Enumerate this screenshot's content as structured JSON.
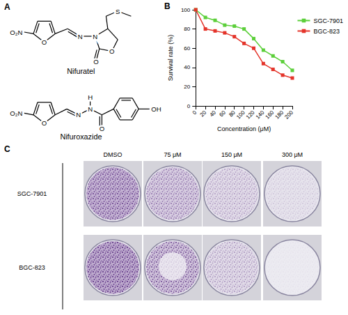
{
  "panel_labels": [
    "A",
    "B",
    "C"
  ],
  "panel_a": {
    "molecules": [
      {
        "name": "Nifuratel",
        "atoms": [
          "O₂N",
          "O",
          "N",
          "N",
          "O",
          "O",
          "S"
        ]
      },
      {
        "name": "Nifuroxazide",
        "atoms": [
          "O₂N",
          "O",
          "N",
          "N",
          "H",
          "O",
          "OH"
        ]
      }
    ]
  },
  "chart_data": {
    "type": "line",
    "xlabel": "Concentration (μM)",
    "ylabel": "Survival rate (%)",
    "x": [
      0,
      20,
      40,
      60,
      80,
      100,
      120,
      140,
      160,
      180,
      200
    ],
    "xlim": [
      0,
      200
    ],
    "xticks": [
      0,
      20,
      40,
      60,
      80,
      100,
      120,
      140,
      160,
      180,
      200
    ],
    "ylim": [
      0,
      100
    ],
    "yticks": [
      0,
      20,
      40,
      60,
      80,
      100
    ],
    "grid": false,
    "legend": "upper right",
    "marker": "square",
    "line_style": "solid",
    "series": [
      {
        "name": "SGC-7901",
        "color": "#5ccf3a",
        "values": [
          100,
          92,
          89,
          84,
          83,
          80,
          70,
          58,
          52,
          46,
          37
        ]
      },
      {
        "name": "BGC-823",
        "color": "#e4342a",
        "values": [
          100,
          80,
          78,
          76,
          72,
          65,
          60,
          44,
          38,
          32,
          29
        ]
      }
    ]
  },
  "panel_c": {
    "columns": [
      "DMSO",
      "75 μM",
      "150 μM",
      "300 μM"
    ],
    "rows": [
      "SGC-7901",
      "BGC-823"
    ]
  }
}
